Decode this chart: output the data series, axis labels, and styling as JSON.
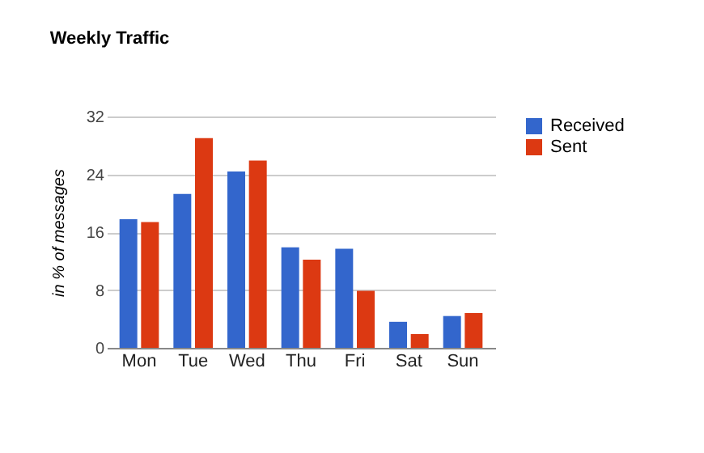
{
  "chart_data": {
    "type": "bar",
    "title": "Weekly Traffic",
    "ylabel": "in % of messages",
    "categories": [
      "Mon",
      "Tue",
      "Wed",
      "Thu",
      "Fri",
      "Sat",
      "Sun"
    ],
    "series": [
      {
        "name": "Received",
        "color": "#3366cc",
        "values": [
          17.8,
          21.3,
          24.4,
          13.9,
          13.7,
          3.6,
          4.4
        ]
      },
      {
        "name": "Sent",
        "color": "#dc3912",
        "values": [
          17.4,
          29.0,
          25.9,
          12.2,
          7.9,
          1.9,
          4.8
        ]
      }
    ],
    "ylim": [
      0,
      32
    ],
    "yticks": [
      0,
      8,
      16,
      24,
      32
    ],
    "grid": "y",
    "legend": "top right"
  }
}
